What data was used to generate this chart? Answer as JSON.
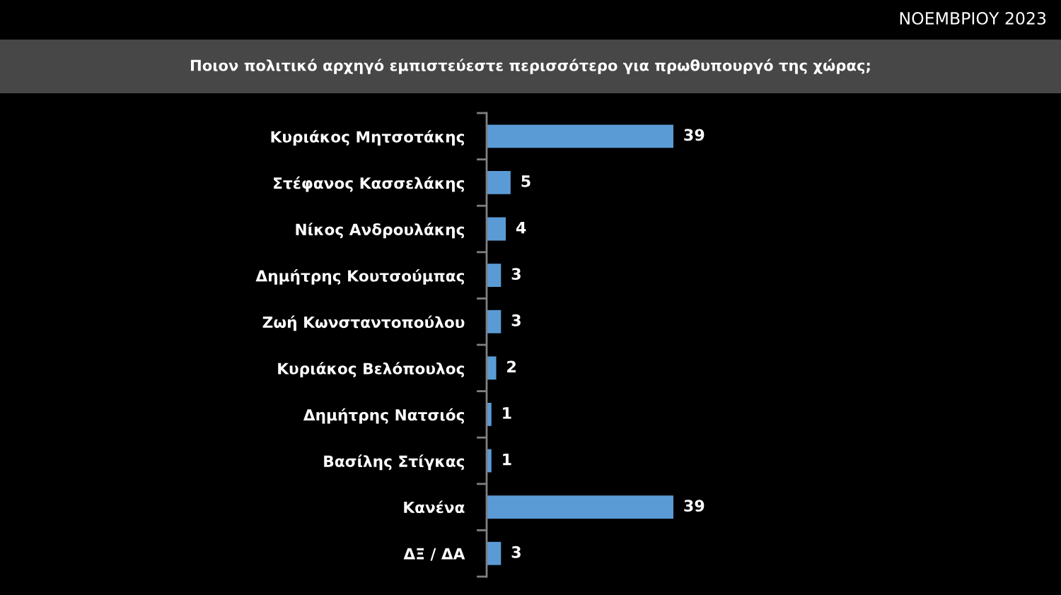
{
  "chart_data": {
    "type": "bar",
    "orientation": "horizontal",
    "title": "Ποιον πολιτικό αρχηγό εμπιστεύεστε περισσότερο για πρωθυπουργό της χώρας;",
    "subtitle": "ΝΟΕΜΒΡΙΟΥ 2023",
    "categories": [
      "Κυριάκος Μητσοτάκης",
      "Στέφανος Κασσελάκης",
      "Νίκος Ανδρουλάκης",
      "Δημήτρης Κουτσούμπας",
      "Ζωή Κωνσταντοπούλου",
      "Κυριάκος Βελόπουλος",
      "Δημήτρης Νατσιός",
      "Βασίλης Στίγκας",
      "Κανένα",
      "ΔΞ / ΔΑ"
    ],
    "values": [
      39,
      5,
      4,
      3,
      3,
      2,
      1,
      1,
      39,
      3
    ],
    "color": "#5b9bd5",
    "data_labels": true,
    "tick_labels": "y",
    "grid": false
  }
}
